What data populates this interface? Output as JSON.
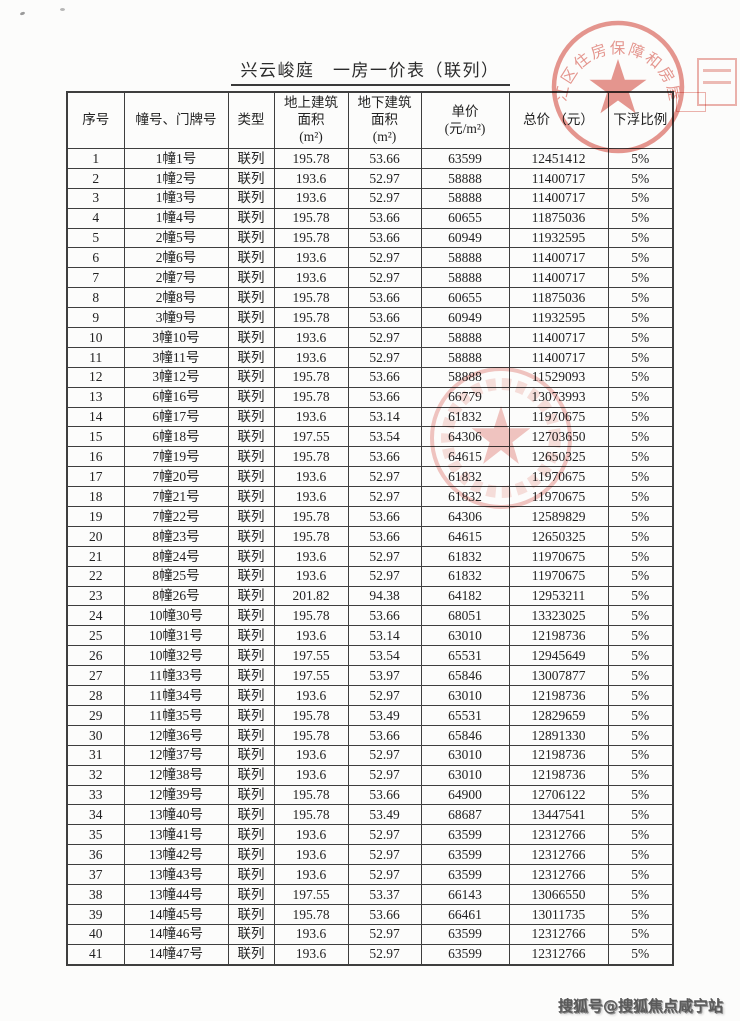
{
  "page": {
    "title": "兴云峻庭　一房一价表（联列）"
  },
  "table": {
    "headers": [
      "序号",
      "幢号、门牌号",
      "类型",
      "地上建筑\n面积\n(m²)",
      "地下建筑\n面积\n(m²)",
      "单价\n(元/m²)",
      "总价 （元）",
      "下浮比例"
    ],
    "rows": [
      [
        "1",
        "1幢1号",
        "联列",
        "195.78",
        "53.66",
        "63599",
        "12451412",
        "5%"
      ],
      [
        "2",
        "1幢2号",
        "联列",
        "193.6",
        "52.97",
        "58888",
        "11400717",
        "5%"
      ],
      [
        "3",
        "1幢3号",
        "联列",
        "193.6",
        "52.97",
        "58888",
        "11400717",
        "5%"
      ],
      [
        "4",
        "1幢4号",
        "联列",
        "195.78",
        "53.66",
        "60655",
        "11875036",
        "5%"
      ],
      [
        "5",
        "2幢5号",
        "联列",
        "195.78",
        "53.66",
        "60949",
        "11932595",
        "5%"
      ],
      [
        "6",
        "2幢6号",
        "联列",
        "193.6",
        "52.97",
        "58888",
        "11400717",
        "5%"
      ],
      [
        "7",
        "2幢7号",
        "联列",
        "193.6",
        "52.97",
        "58888",
        "11400717",
        "5%"
      ],
      [
        "8",
        "2幢8号",
        "联列",
        "195.78",
        "53.66",
        "60655",
        "11875036",
        "5%"
      ],
      [
        "9",
        "3幢9号",
        "联列",
        "195.78",
        "53.66",
        "60949",
        "11932595",
        "5%"
      ],
      [
        "10",
        "3幢10号",
        "联列",
        "193.6",
        "52.97",
        "58888",
        "11400717",
        "5%"
      ],
      [
        "11",
        "3幢11号",
        "联列",
        "193.6",
        "52.97",
        "58888",
        "11400717",
        "5%"
      ],
      [
        "12",
        "3幢12号",
        "联列",
        "195.78",
        "53.66",
        "58888",
        "11529093",
        "5%"
      ],
      [
        "13",
        "6幢16号",
        "联列",
        "195.78",
        "53.66",
        "66779",
        "13073993",
        "5%"
      ],
      [
        "14",
        "6幢17号",
        "联列",
        "193.6",
        "53.14",
        "61832",
        "11970675",
        "5%"
      ],
      [
        "15",
        "6幢18号",
        "联列",
        "197.55",
        "53.54",
        "64306",
        "12703650",
        "5%"
      ],
      [
        "16",
        "7幢19号",
        "联列",
        "195.78",
        "53.66",
        "64615",
        "12650325",
        "5%"
      ],
      [
        "17",
        "7幢20号",
        "联列",
        "193.6",
        "52.97",
        "61832",
        "11970675",
        "5%"
      ],
      [
        "18",
        "7幢21号",
        "联列",
        "193.6",
        "52.97",
        "61832",
        "11970675",
        "5%"
      ],
      [
        "19",
        "7幢22号",
        "联列",
        "195.78",
        "53.66",
        "64306",
        "12589829",
        "5%"
      ],
      [
        "20",
        "8幢23号",
        "联列",
        "195.78",
        "53.66",
        "64615",
        "12650325",
        "5%"
      ],
      [
        "21",
        "8幢24号",
        "联列",
        "193.6",
        "52.97",
        "61832",
        "11970675",
        "5%"
      ],
      [
        "22",
        "8幢25号",
        "联列",
        "193.6",
        "52.97",
        "61832",
        "11970675",
        "5%"
      ],
      [
        "23",
        "8幢26号",
        "联列",
        "201.82",
        "94.38",
        "64182",
        "12953211",
        "5%"
      ],
      [
        "24",
        "10幢30号",
        "联列",
        "195.78",
        "53.66",
        "68051",
        "13323025",
        "5%"
      ],
      [
        "25",
        "10幢31号",
        "联列",
        "193.6",
        "53.14",
        "63010",
        "12198736",
        "5%"
      ],
      [
        "26",
        "10幢32号",
        "联列",
        "197.55",
        "53.54",
        "65531",
        "12945649",
        "5%"
      ],
      [
        "27",
        "11幢33号",
        "联列",
        "197.55",
        "53.97",
        "65846",
        "13007877",
        "5%"
      ],
      [
        "28",
        "11幢34号",
        "联列",
        "193.6",
        "52.97",
        "63010",
        "12198736",
        "5%"
      ],
      [
        "29",
        "11幢35号",
        "联列",
        "195.78",
        "53.49",
        "65531",
        "12829659",
        "5%"
      ],
      [
        "30",
        "12幢36号",
        "联列",
        "195.78",
        "53.66",
        "65846",
        "12891330",
        "5%"
      ],
      [
        "31",
        "12幢37号",
        "联列",
        "193.6",
        "52.97",
        "63010",
        "12198736",
        "5%"
      ],
      [
        "32",
        "12幢38号",
        "联列",
        "193.6",
        "52.97",
        "63010",
        "12198736",
        "5%"
      ],
      [
        "33",
        "12幢39号",
        "联列",
        "195.78",
        "53.66",
        "64900",
        "12706122",
        "5%"
      ],
      [
        "34",
        "13幢40号",
        "联列",
        "195.78",
        "53.49",
        "68687",
        "13447541",
        "5%"
      ],
      [
        "35",
        "13幢41号",
        "联列",
        "193.6",
        "52.97",
        "63599",
        "12312766",
        "5%"
      ],
      [
        "36",
        "13幢42号",
        "联列",
        "193.6",
        "52.97",
        "63599",
        "12312766",
        "5%"
      ],
      [
        "37",
        "13幢43号",
        "联列",
        "193.6",
        "52.97",
        "63599",
        "12312766",
        "5%"
      ],
      [
        "38",
        "13幢44号",
        "联列",
        "197.55",
        "53.37",
        "66143",
        "13066550",
        "5%"
      ],
      [
        "39",
        "14幢45号",
        "联列",
        "195.78",
        "53.66",
        "66461",
        "13011735",
        "5%"
      ],
      [
        "40",
        "14幢46号",
        "联列",
        "193.6",
        "52.97",
        "63599",
        "12312766",
        "5%"
      ],
      [
        "41",
        "14幢47号",
        "联列",
        "193.6",
        "52.97",
        "63599",
        "12312766",
        "5%"
      ]
    ]
  },
  "stamps": {
    "seal_top_rim_text": "江区住房保障和房屋管理局",
    "seal_color": "#d8574b"
  },
  "watermark": {
    "text": "搜狐号@搜狐焦点咸宁站"
  }
}
